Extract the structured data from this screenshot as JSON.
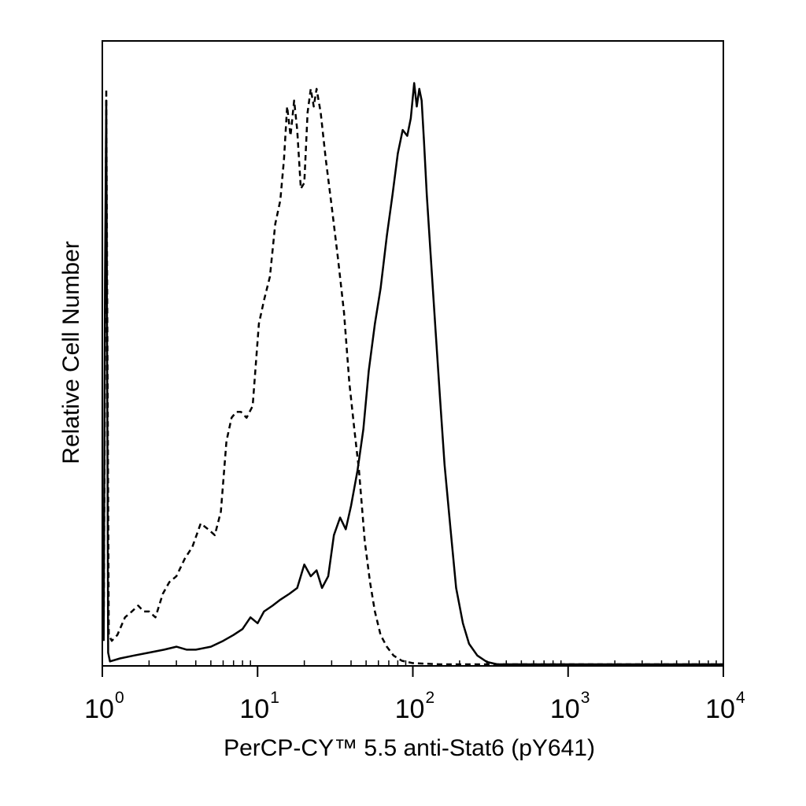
{
  "chart_data": {
    "type": "line",
    "title": "",
    "xlabel": "PerCP-CY™ 5.5 anti-Stat6 (pY641)",
    "ylabel": "Relative Cell Number",
    "x_scale": "log",
    "xlim": [
      1,
      10000
    ],
    "ylim": [
      0,
      100
    ],
    "grid": false,
    "x_tick_labels": [
      {
        "base": "10",
        "exp": "0"
      },
      {
        "base": "10",
        "exp": "1"
      },
      {
        "base": "10",
        "exp": "2"
      },
      {
        "base": "10",
        "exp": "3"
      },
      {
        "base": "10",
        "exp": "4"
      }
    ],
    "series": [
      {
        "style": "dashed",
        "color": "#000000",
        "x": [
          1.02,
          1.04,
          1.06,
          1.1,
          1.15,
          1.25,
          1.4,
          1.55,
          1.7,
          1.85,
          2.0,
          2.2,
          2.45,
          2.7,
          3.0,
          3.4,
          3.8,
          4.3,
          4.8,
          5.3,
          5.8,
          6.3,
          6.8,
          7.3,
          7.8,
          8.5,
          9.3,
          10.2,
          11.0,
          12.0,
          13.0,
          14.0,
          14.8,
          15.5,
          16.3,
          17.2,
          18.0,
          19.0,
          20.0,
          21.0,
          22.0,
          23.0,
          24.0,
          25.5,
          27.5,
          30.0,
          33.0,
          36.0,
          39.0,
          42.0,
          45.0,
          49.0,
          53.0,
          57.0,
          62.0,
          68.0,
          75.0,
          85.0,
          100.0,
          150.0,
          300.0,
          1000.0,
          10000.0
        ],
        "values": [
          5,
          50,
          98,
          5,
          4,
          5,
          8,
          9,
          10,
          9,
          9,
          8,
          12,
          14,
          15,
          18,
          20,
          24,
          23,
          22,
          26,
          38,
          42,
          43,
          43,
          42,
          44,
          58,
          62,
          66,
          75,
          79,
          86,
          95,
          90,
          96,
          91,
          81,
          82,
          94,
          98,
          95,
          98,
          94,
          86,
          78,
          69,
          60,
          48,
          40,
          33,
          21,
          14,
          9,
          5,
          3,
          1.5,
          0.6,
          0.2,
          0,
          0,
          0,
          0
        ]
      },
      {
        "style": "solid",
        "color": "#000000",
        "x": [
          1.02,
          1.04,
          1.06,
          1.09,
          1.12,
          1.3,
          1.6,
          2.0,
          2.5,
          3.0,
          3.5,
          4.0,
          5.0,
          6.0,
          7.0,
          8.0,
          9.0,
          10.0,
          11.0,
          12.5,
          14.0,
          16.0,
          18.0,
          20.0,
          22.0,
          24.0,
          26.0,
          28.5,
          31.0,
          34.0,
          37.0,
          40.0,
          44.0,
          48.0,
          52.0,
          57.0,
          62.0,
          68.0,
          74.0,
          80.0,
          86.0,
          92.0,
          97.0,
          102.0,
          106.0,
          110.0,
          114.0,
          118.0,
          123.0,
          130.0,
          140.0,
          150.0,
          160.0,
          175.0,
          190.0,
          210.0,
          230.0,
          260.0,
          300.0,
          350.0,
          500.0,
          1000.0,
          10000.0
        ],
        "values": [
          4,
          65,
          96,
          2,
          0.5,
          1,
          1.5,
          2,
          2.5,
          3,
          2.5,
          2.5,
          3,
          4,
          5,
          6,
          8,
          7,
          9,
          10,
          11,
          12,
          13,
          17,
          15,
          16,
          13,
          15,
          22,
          25,
          23,
          27,
          33,
          40,
          50,
          58,
          64,
          73,
          80,
          87,
          91,
          90,
          93,
          99,
          95,
          98,
          96,
          89,
          80,
          70,
          57,
          45,
          34,
          23,
          13,
          7,
          3.5,
          1.5,
          0.4,
          0,
          0,
          0,
          0
        ]
      }
    ]
  }
}
